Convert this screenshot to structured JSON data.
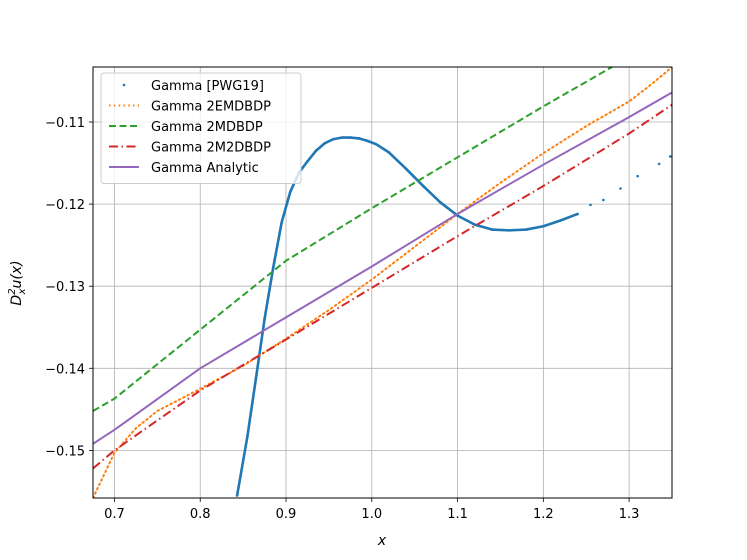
{
  "chart_data": {
    "type": "line",
    "title": "",
    "xlabel": "x",
    "ylabel": "D_x^2 u(x)",
    "xlim": [
      0.675,
      1.35
    ],
    "ylim": [
      -0.1558,
      -0.1033
    ],
    "grid": true,
    "legend_position": "top-left",
    "x_ticks": [
      0.7,
      0.8,
      0.9,
      1.0,
      1.1,
      1.2,
      1.3
    ],
    "x_tick_labels": [
      "0.7",
      "0.8",
      "0.9",
      "1.0",
      "1.1",
      "1.2",
      "1.3"
    ],
    "y_ticks": [
      -0.15,
      -0.14,
      -0.13,
      -0.12,
      -0.11
    ],
    "y_tick_labels": [
      "−0.15",
      "−0.14",
      "−0.13",
      "−0.12",
      "−0.11"
    ],
    "series": [
      {
        "name": "Gamma [PWG19]",
        "style": "points",
        "color": "#1f77b4",
        "x": [
          0.843,
          0.855,
          0.865,
          0.875,
          0.885,
          0.895,
          0.905,
          0.915,
          0.925,
          0.935,
          0.945,
          0.955,
          0.965,
          0.975,
          0.985,
          0.995,
          1.005,
          1.02,
          1.04,
          1.06,
          1.08,
          1.1,
          1.12,
          1.14,
          1.16,
          1.18,
          1.2,
          1.22,
          1.24,
          1.255,
          1.27,
          1.29,
          1.31,
          1.335,
          1.348
        ],
        "y": [
          -0.1555,
          -0.1483,
          -0.1412,
          -0.134,
          -0.1278,
          -0.1222,
          -0.1185,
          -0.1162,
          -0.1148,
          -0.1135,
          -0.1126,
          -0.1121,
          -0.1119,
          -0.1119,
          -0.112,
          -0.1123,
          -0.1127,
          -0.1137,
          -0.1157,
          -0.1178,
          -0.1198,
          -0.1214,
          -0.1225,
          -0.1231,
          -0.1232,
          -0.1231,
          -0.1227,
          -0.122,
          -0.1212,
          -0.1201,
          -0.1195,
          -0.1181,
          -0.1166,
          -0.1151,
          -0.1142
        ]
      },
      {
        "name": "Gamma 2EMDBDP",
        "style": "dotted",
        "color": "#ff7f0e",
        "x": [
          0.675,
          0.7,
          0.725,
          0.75,
          0.8,
          0.85,
          0.9,
          0.95,
          1.0,
          1.05,
          1.1,
          1.15,
          1.2,
          1.25,
          1.3,
          1.32,
          1.34,
          1.35
        ],
        "y": [
          -0.1558,
          -0.1503,
          -0.1473,
          -0.1452,
          -0.1425,
          -0.1397,
          -0.1364,
          -0.1329,
          -0.1292,
          -0.1252,
          -0.1212,
          -0.1174,
          -0.1138,
          -0.1105,
          -0.1075,
          -0.1059,
          -0.1042,
          -0.1033
        ]
      },
      {
        "name": "Gamma 2MDBDP",
        "style": "dashed",
        "color": "#2ca02c",
        "x": [
          0.675,
          0.7,
          0.8,
          0.9,
          1.0,
          1.1,
          1.2,
          1.28
        ],
        "y": [
          -0.1452,
          -0.1437,
          -0.1353,
          -0.1269,
          -0.1205,
          -0.1143,
          -0.1081,
          -0.1033
        ]
      },
      {
        "name": "Gamma 2M2DBDP",
        "style": "dashdot",
        "color": "#d62728",
        "x": [
          0.675,
          0.7,
          0.8,
          0.9,
          1.0,
          1.1,
          1.2,
          1.3,
          1.35
        ],
        "y": [
          -0.1522,
          -0.15,
          -0.1427,
          -0.1365,
          -0.1302,
          -0.1239,
          -0.1178,
          -0.1114,
          -0.1079
        ]
      },
      {
        "name": "Gamma Analytic",
        "style": "solid",
        "color": "#9467bd",
        "x": [
          0.675,
          0.7,
          0.8,
          0.9,
          1.0,
          1.1,
          1.2,
          1.3,
          1.35
        ],
        "y": [
          -0.1492,
          -0.1475,
          -0.14,
          -0.1338,
          -0.1276,
          -0.1212,
          -0.1152,
          -0.1094,
          -0.1064
        ]
      }
    ]
  }
}
